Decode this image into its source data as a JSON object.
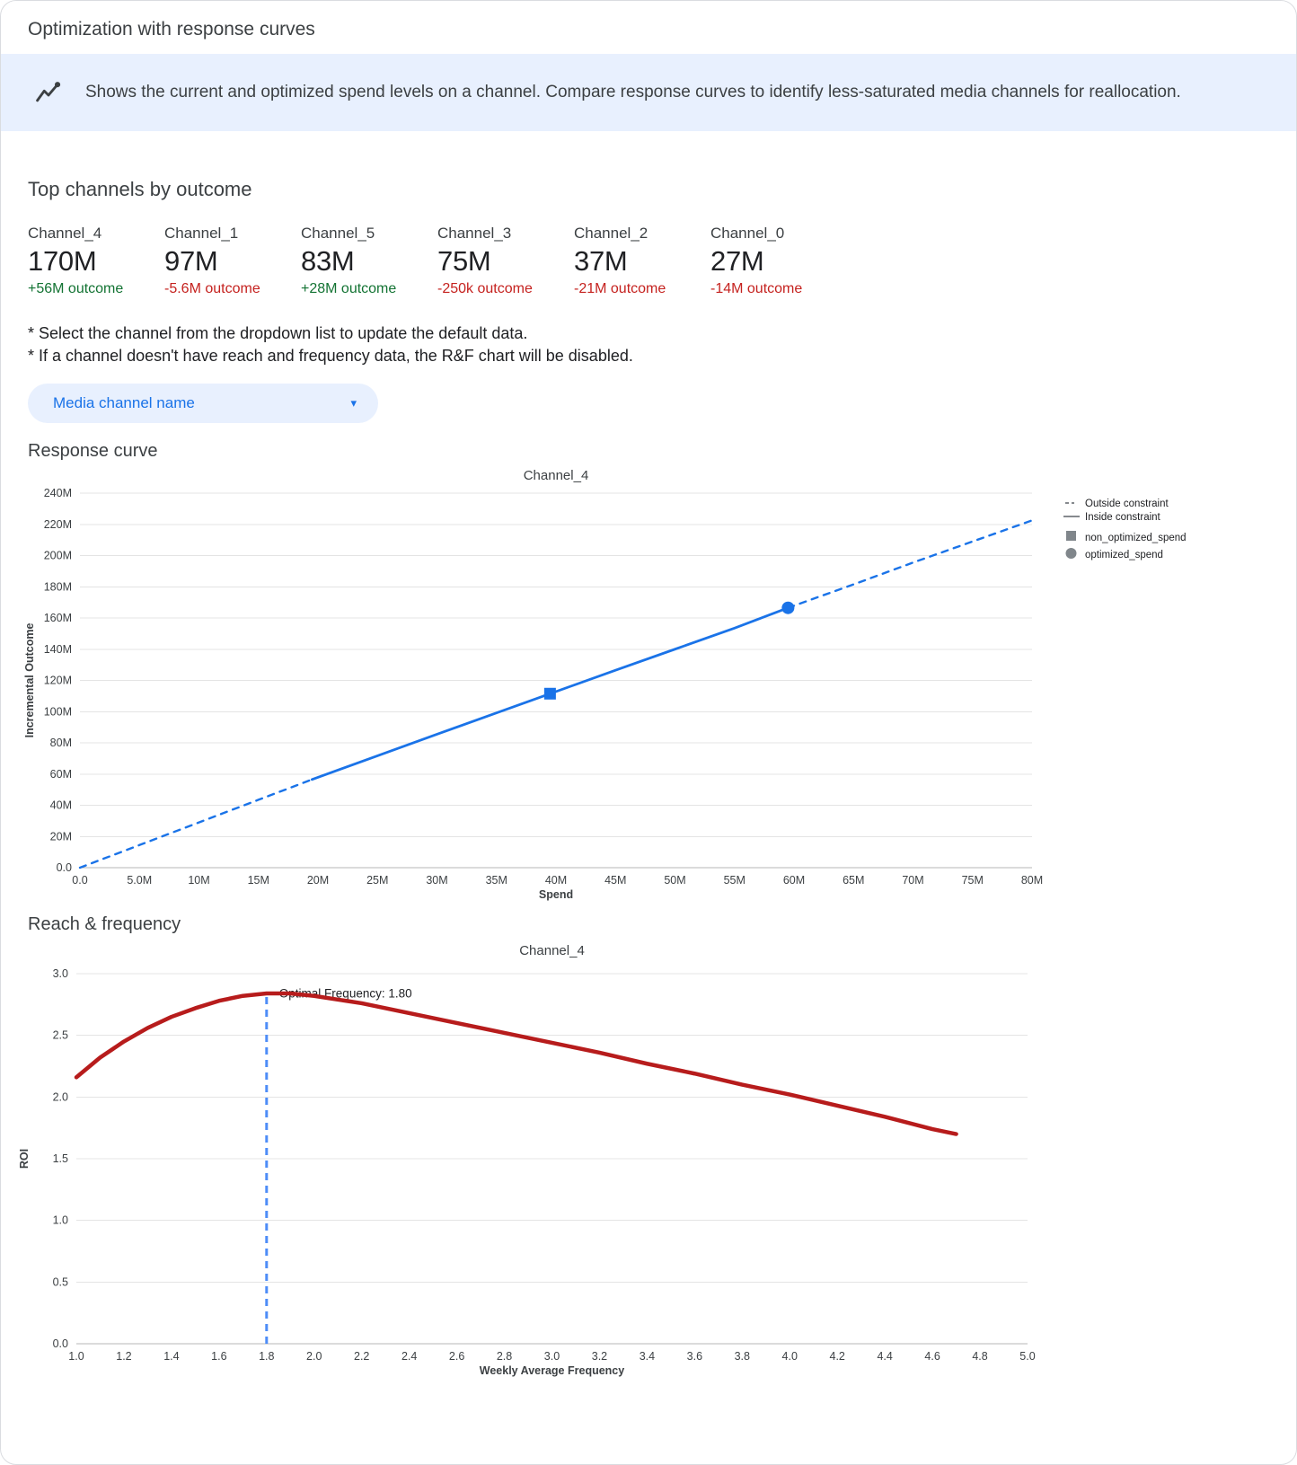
{
  "header": {
    "title": "Optimization with response curves",
    "banner_text": "Shows the current and optimized spend levels on a channel. Compare response curves to identify less-saturated media channels for reallocation."
  },
  "icons": {
    "insights_icon": "trending-line-chart",
    "chevron_down_icon": "▾"
  },
  "colors": {
    "positive": "#137333",
    "negative": "#c5221f",
    "accent_blue": "#1a73e8",
    "banner_bg": "#e8f0fe",
    "curve_red": "#b71c1c"
  },
  "top_channels": {
    "heading": "Top channels by outcome",
    "items": [
      {
        "name": "Channel_4",
        "value": "170M",
        "outcome": "+56M outcome",
        "outcome_color": "#137333"
      },
      {
        "name": "Channel_1",
        "value": "97M",
        "outcome": "-5.6M outcome",
        "outcome_color": "#c5221f"
      },
      {
        "name": "Channel_5",
        "value": "83M",
        "outcome": "+28M outcome",
        "outcome_color": "#137333"
      },
      {
        "name": "Channel_3",
        "value": "75M",
        "outcome": "-250k outcome",
        "outcome_color": "#c5221f"
      },
      {
        "name": "Channel_2",
        "value": "37M",
        "outcome": "-21M outcome",
        "outcome_color": "#c5221f"
      },
      {
        "name": "Channel_0",
        "value": "27M",
        "outcome": "-14M outcome",
        "outcome_color": "#c5221f"
      }
    ]
  },
  "notes": [
    "* Select the channel from the dropdown list to update the default data.",
    "* If a channel doesn't have reach and frequency data, the R&F chart will be disabled."
  ],
  "dropdown": {
    "label": "Media channel name"
  },
  "sections": {
    "response_curve": "Response curve",
    "reach_frequency": "Reach & frequency"
  },
  "chart_data": [
    {
      "type": "line",
      "title": "Channel_4",
      "xlabel": "Spend",
      "ylabel": "Incremental Outcome",
      "xlim": [
        0,
        80
      ],
      "ylim": [
        0,
        240
      ],
      "x_ticks": [
        0,
        5,
        10,
        15,
        20,
        25,
        30,
        35,
        40,
        45,
        50,
        55,
        60,
        65,
        70,
        75,
        80
      ],
      "x_tick_labels": [
        "0.0",
        "5.0M",
        "10M",
        "15M",
        "20M",
        "25M",
        "30M",
        "35M",
        "40M",
        "45M",
        "50M",
        "55M",
        "60M",
        "65M",
        "70M",
        "75M",
        "80M"
      ],
      "y_ticks": [
        0,
        20,
        40,
        60,
        80,
        100,
        120,
        140,
        160,
        180,
        200,
        220,
        240
      ],
      "y_tick_labels": [
        "0.0",
        "20M",
        "40M",
        "60M",
        "80M",
        "100M",
        "120M",
        "140M",
        "160M",
        "180M",
        "200M",
        "220M",
        "240M"
      ],
      "units": "M",
      "series": [
        {
          "name": "outside_constraint_lower",
          "style": "dashed",
          "color": "#1a73e8",
          "width": 2.4,
          "x": [
            0,
            5,
            10,
            15,
            19.5
          ],
          "y": [
            0,
            14.5,
            29,
            43.5,
            56.5
          ]
        },
        {
          "name": "inside_constraint",
          "style": "solid",
          "color": "#1a73e8",
          "width": 2.8,
          "x": [
            19.5,
            25,
            30,
            35,
            39.5,
            45,
            50,
            55,
            59.5
          ],
          "y": [
            56.5,
            71.7,
            85.5,
            99.2,
            111.5,
            126.5,
            140,
            153.5,
            166.5
          ]
        },
        {
          "name": "outside_constraint_upper",
          "style": "dashed",
          "color": "#1a73e8",
          "width": 2.4,
          "x": [
            59.5,
            65,
            70,
            75,
            80
          ],
          "y": [
            166.5,
            181.5,
            195.5,
            209,
            222.5
          ]
        }
      ],
      "markers": [
        {
          "name": "non_optimized_spend",
          "shape": "square",
          "x": 39.5,
          "y": 111.5,
          "color": "#1a73e8"
        },
        {
          "name": "optimized_spend",
          "shape": "circle",
          "x": 59.5,
          "y": 166.5,
          "color": "#1a73e8"
        }
      ],
      "legend": [
        {
          "label": "Outside constraint",
          "symbol": "dashed-line",
          "color": "#5f6368"
        },
        {
          "label": "Inside constraint",
          "symbol": "solid-line",
          "color": "#5f6368"
        },
        {
          "label": "non_optimized_spend",
          "symbol": "square",
          "color": "#80868b"
        },
        {
          "label": "optimized_spend",
          "symbol": "circle",
          "color": "#80868b"
        }
      ],
      "legend_position": "right"
    },
    {
      "type": "line",
      "title": "Channel_4",
      "xlabel": "Weekly Average Frequency",
      "ylabel": "ROI",
      "xlim": [
        1.0,
        5.0
      ],
      "ylim": [
        0,
        3.0
      ],
      "x_ticks": [
        1.0,
        1.2,
        1.4,
        1.6,
        1.8,
        2.0,
        2.2,
        2.4,
        2.6,
        2.8,
        3.0,
        3.2,
        3.4,
        3.6,
        3.8,
        4.0,
        4.2,
        4.4,
        4.6,
        4.8,
        5.0
      ],
      "x_tick_labels": [
        "1.0",
        "1.2",
        "1.4",
        "1.6",
        "1.8",
        "2.0",
        "2.2",
        "2.4",
        "2.6",
        "2.8",
        "3.0",
        "3.2",
        "3.4",
        "3.6",
        "3.8",
        "4.0",
        "4.2",
        "4.4",
        "4.6",
        "4.8",
        "5.0"
      ],
      "y_ticks": [
        0,
        0.5,
        1.0,
        1.5,
        2.0,
        2.5,
        3.0
      ],
      "y_tick_labels": [
        "0.0",
        "0.5",
        "1.0",
        "1.5",
        "2.0",
        "2.5",
        "3.0"
      ],
      "series": [
        {
          "name": "roi_vs_frequency",
          "style": "solid",
          "color": "#b71c1c",
          "width": 4.5,
          "x": [
            1.0,
            1.1,
            1.2,
            1.3,
            1.4,
            1.5,
            1.6,
            1.7,
            1.8,
            1.9,
            2.0,
            2.2,
            2.4,
            2.6,
            2.8,
            3.0,
            3.2,
            3.4,
            3.6,
            3.8,
            4.0,
            4.2,
            4.4,
            4.6,
            4.7
          ],
          "y": [
            2.16,
            2.32,
            2.45,
            2.56,
            2.65,
            2.72,
            2.78,
            2.82,
            2.84,
            2.84,
            2.82,
            2.76,
            2.68,
            2.6,
            2.52,
            2.44,
            2.36,
            2.27,
            2.19,
            2.1,
            2.02,
            1.93,
            1.84,
            1.74,
            1.7
          ]
        }
      ],
      "vline": {
        "x": 1.8,
        "ymax": 2.83,
        "color": "#4e8df7",
        "label": "Optimal Frequency: 1.80"
      },
      "optimal_frequency": 1.8
    }
  ]
}
